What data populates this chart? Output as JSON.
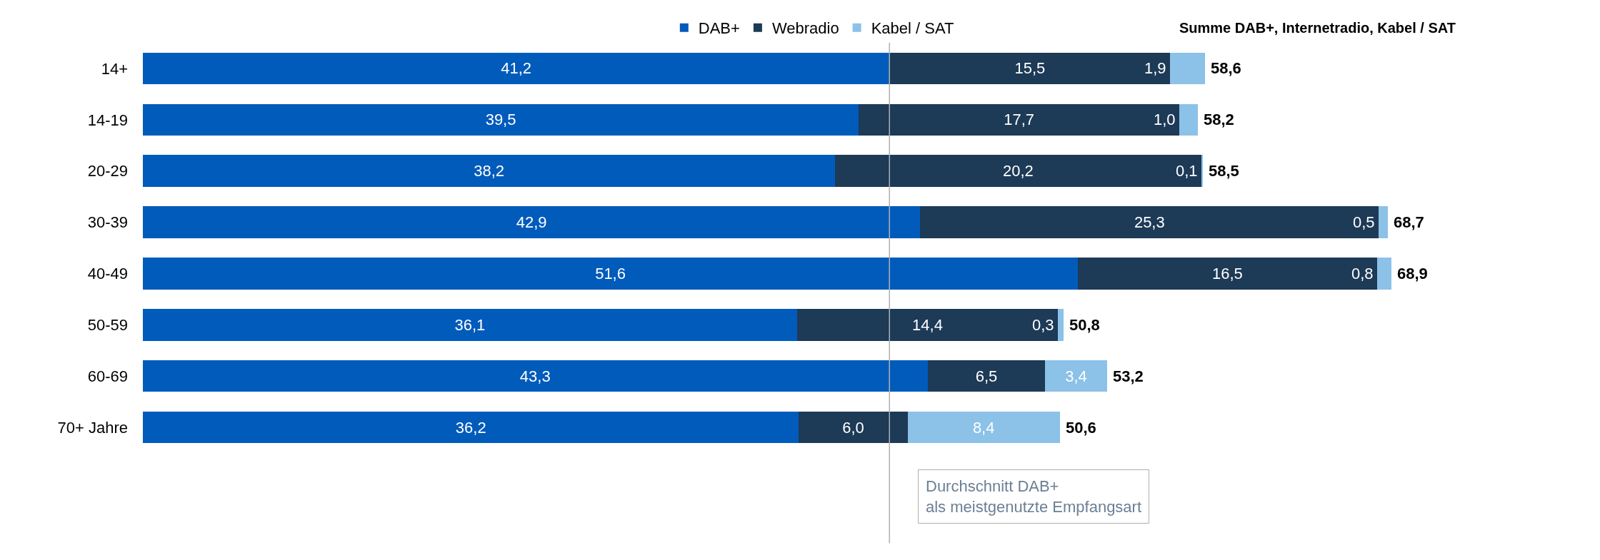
{
  "chart_data": {
    "type": "bar",
    "orientation": "horizontal",
    "stacked": true,
    "legend": "top",
    "categories": [
      "14+",
      "14-19",
      "20-29",
      "30-39",
      "40-49",
      "50-59",
      "60-69",
      "70+ Jahre"
    ],
    "series": [
      {
        "name": "DAB+",
        "color": "#005bbb",
        "values": [
          41.2,
          39.5,
          38.2,
          42.9,
          51.6,
          36.1,
          43.3,
          36.2
        ],
        "value_labels": [
          "41,2",
          "39,5",
          "38,2",
          "42,9",
          "51,6",
          "36,1",
          "43,3",
          "36,2"
        ]
      },
      {
        "name": "Webradio",
        "color": "#1d3a57",
        "values": [
          15.5,
          17.7,
          20.2,
          25.3,
          16.5,
          14.4,
          6.5,
          6.0
        ],
        "value_labels": [
          "15,5",
          "17,7",
          "20,2",
          "25,3",
          "16,5",
          "14,4",
          "6,5",
          "6,0"
        ]
      },
      {
        "name": "Kabel / SAT",
        "color": "#8cc1e8",
        "values": [
          1.9,
          1.0,
          0.1,
          0.5,
          0.8,
          0.3,
          3.4,
          8.4
        ],
        "value_labels": [
          "1,9",
          "1,0",
          "0,1",
          "0,5",
          "0,8",
          "0,3",
          "3,4",
          "8,4"
        ]
      }
    ],
    "totals": [
      "58,6",
      "58,2",
      "58,5",
      "68,7",
      "68,9",
      "50,8",
      "53,2",
      "50,6"
    ],
    "annotations": [
      "Summe DAB+, Internetradio, Kabel / SAT"
    ],
    "ref_lines": [
      {
        "axis": "x",
        "value": 41.2,
        "label": "Durchschnitt DAB+\nals meistgenutzte Empfangsart",
        "color": "#b0b0b0"
      }
    ]
  }
}
